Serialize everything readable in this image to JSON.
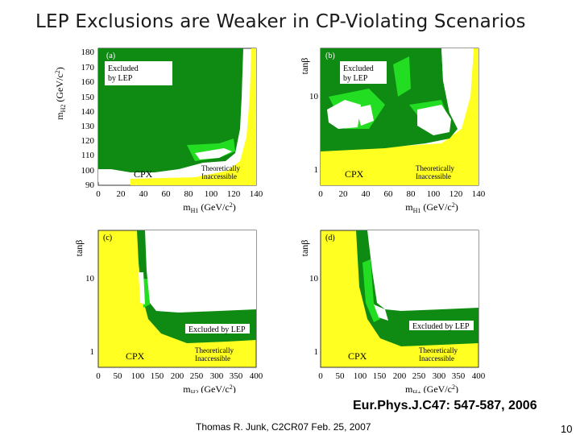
{
  "slide": {
    "title": "LEP Exclusions are Weaker in CP-Violating Scenarios",
    "citation": "Eur.Phys.J.C47: 547-587, 2006",
    "footer": "Thomas R. Junk, C2CR07 Feb. 25, 2007",
    "page_number": "10"
  },
  "colors": {
    "excluded_dark": "#0f8a12",
    "excluded_light": "#22dd22",
    "theoretically_inaccessible": "#ffff22",
    "allowed": "#ffffff"
  },
  "chart_data": [
    {
      "type": "heatmap",
      "panel": "(a)",
      "xlabel": "m_H1 (GeV/c^2)",
      "ylabel": "m_H2 (GeV/c^2)",
      "xlim": [
        0,
        140
      ],
      "ylim": [
        90,
        180
      ],
      "xticks": [
        "0",
        "20",
        "40",
        "60",
        "80",
        "100",
        "120",
        "140"
      ],
      "yticks": [
        "90",
        "100",
        "110",
        "120",
        "130",
        "140",
        "150",
        "160",
        "170",
        "180"
      ],
      "scale": "CPX",
      "labels": [
        "Excluded by LEP",
        "Theoretically Inaccessible"
      ],
      "regions": [
        {
          "name": "Excluded by LEP",
          "x_range": [
            0,
            105
          ],
          "y_range": [
            103,
            180
          ]
        },
        {
          "name": "Theoretically Inaccessible",
          "x_range": [
            60,
            140
          ],
          "y_range": [
            90,
            180
          ]
        }
      ]
    },
    {
      "type": "heatmap",
      "panel": "(b)",
      "xlabel": "m_H1 (GeV/c^2)",
      "ylabel": "tanβ",
      "xlim": [
        0,
        140
      ],
      "ylim": [
        0.7,
        40
      ],
      "log_y": true,
      "xticks": [
        "0",
        "20",
        "40",
        "60",
        "80",
        "100",
        "120",
        "140"
      ],
      "yticks": [
        "1",
        "10"
      ],
      "scale": "CPX",
      "labels": [
        "Excluded by LEP",
        "Theoretically Inaccessible"
      ],
      "regions": [
        {
          "name": "Excluded by LEP",
          "x_range": [
            0,
            110
          ],
          "y_range": [
            1.8,
            40
          ]
        },
        {
          "name": "Theoretically Inaccessible",
          "x_range": [
            0,
            140
          ],
          "y_range": [
            0.7,
            2.2
          ]
        }
      ]
    },
    {
      "type": "heatmap",
      "panel": "(c)",
      "xlabel": "m_H2 (GeV/c^2)",
      "ylabel": "tanβ",
      "xlim": [
        0,
        400
      ],
      "ylim": [
        0.7,
        40
      ],
      "log_y": true,
      "xticks": [
        "0",
        "50",
        "100",
        "150",
        "200",
        "250",
        "300",
        "350",
        "400"
      ],
      "yticks": [
        "1",
        "10"
      ],
      "scale": "CPX",
      "labels": [
        "Excluded by LEP",
        "Theoretically Inaccessible"
      ],
      "regions": [
        {
          "name": "Excluded by LEP",
          "x_range": [
            100,
            400
          ],
          "y_range": [
            2.2,
            40
          ]
        },
        {
          "name": "Theoretically Inaccessible",
          "x_range": [
            0,
            400
          ],
          "y_range": [
            0.7,
            40
          ]
        }
      ]
    },
    {
      "type": "heatmap",
      "panel": "(d)",
      "xlabel": "m_H+ (GeV/c^2)",
      "ylabel": "tanβ",
      "xlim": [
        0,
        400
      ],
      "ylim": [
        0.7,
        40
      ],
      "log_y": true,
      "xticks": [
        "0",
        "50",
        "100",
        "150",
        "200",
        "250",
        "300",
        "350",
        "400"
      ],
      "yticks": [
        "1",
        "10"
      ],
      "scale": "CPX",
      "labels": [
        "Excluded by LEP",
        "Theoretically Inaccessible"
      ],
      "regions": [
        {
          "name": "Excluded by LEP",
          "x_range": [
            100,
            400
          ],
          "y_range": [
            1.8,
            40
          ]
        },
        {
          "name": "Theoretically Inaccessible",
          "x_range": [
            0,
            400
          ],
          "y_range": [
            0.7,
            40
          ]
        }
      ]
    }
  ]
}
